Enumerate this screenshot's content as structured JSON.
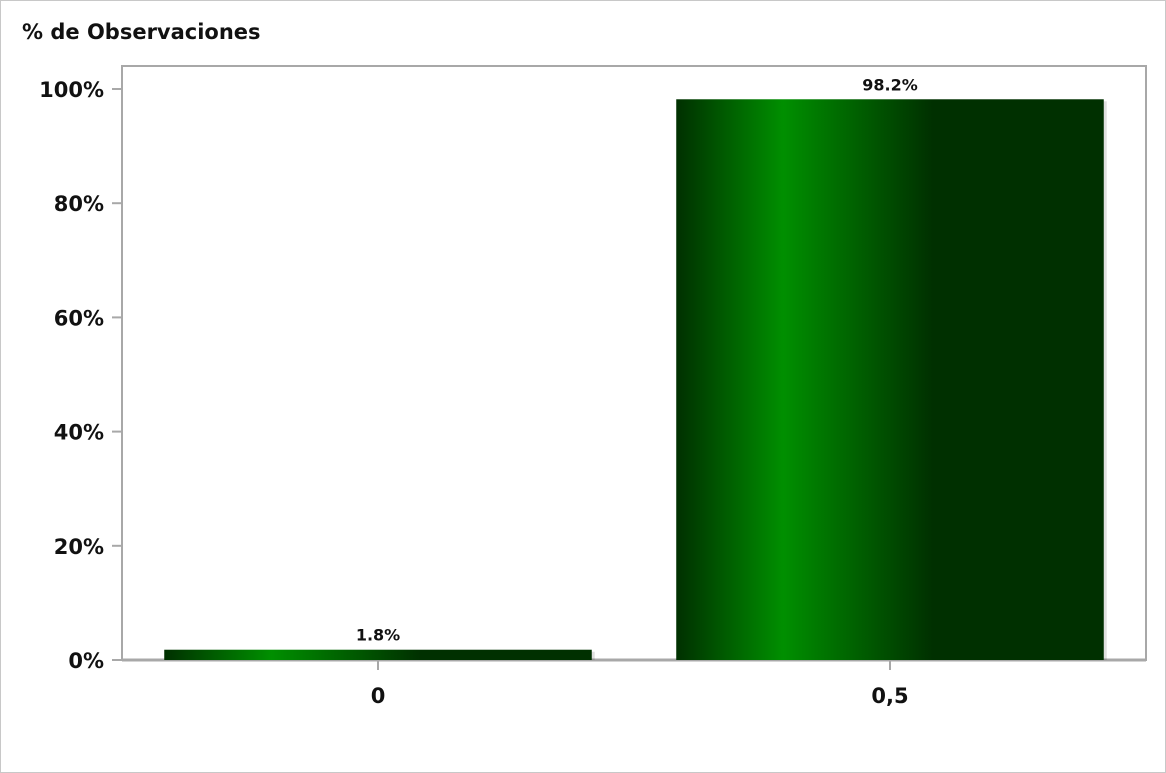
{
  "chart_data": {
    "type": "bar",
    "categories": [
      "0",
      "0,5"
    ],
    "values": [
      1.8,
      98.2
    ],
    "value_labels": [
      "1.8%",
      "98.2%"
    ],
    "ylabel": "% de Observaciones",
    "xlabel": "",
    "ylim": [
      0,
      100
    ],
    "y_ticks": [
      0,
      20,
      40,
      60,
      80,
      100
    ],
    "y_tick_labels": [
      "0%",
      "20%",
      "40%",
      "60%",
      "80%",
      "100%"
    ],
    "grid": false,
    "legend": "none"
  },
  "colors": {
    "bar_dark": "#003000",
    "bar_light": "#008f00",
    "axis": "#a8a8a8",
    "text": "#111111"
  }
}
